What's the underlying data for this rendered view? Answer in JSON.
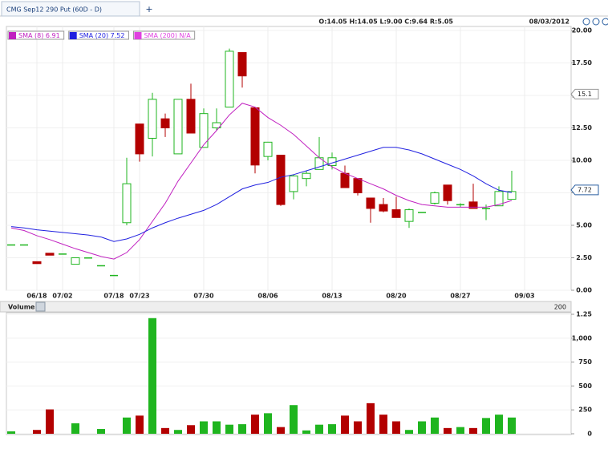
{
  "tab": {
    "title": "CMG Sep12 290 Put (60D - D)",
    "add": "+"
  },
  "chart_data": [
    {
      "type": "candlestick",
      "info": "O:14.05 H:14.05 L:9.00 C:9.64 R:5.05",
      "date": "08/03/2012",
      "categories": [
        null,
        null,
        "06/18",
        null,
        "07/02",
        null,
        null,
        null,
        "07/18",
        null,
        "07/23",
        null,
        null,
        null,
        null,
        "07/30",
        null,
        null,
        null,
        null,
        "08/06",
        null,
        null,
        null,
        null,
        "08/13",
        null,
        null,
        null,
        null,
        "08/20",
        null,
        null,
        null,
        null,
        "08/27",
        null,
        null,
        null,
        null,
        "09/03"
      ],
      "open": [
        3.5,
        3.5,
        2.2,
        2.85,
        2.8,
        2.0,
        2.5,
        1.9,
        1.15,
        5.2,
        12.8,
        11.7,
        13.2,
        10.5,
        14.7,
        11.0,
        12.5,
        14.1,
        18.3,
        14.05,
        10.3,
        10.4,
        7.6,
        8.6,
        9.3,
        9.6,
        9.0,
        8.6,
        7.1,
        6.6,
        6.2,
        5.3,
        6.0,
        6.7,
        8.1,
        6.6,
        6.8,
        6.3,
        6.5,
        7.0,
        null
      ],
      "high": [
        3.5,
        3.5,
        2.2,
        2.85,
        2.8,
        2.5,
        2.5,
        1.9,
        1.15,
        10.2,
        12.8,
        15.2,
        13.6,
        14.7,
        15.9,
        14.0,
        14.0,
        18.6,
        18.3,
        14.05,
        11.4,
        10.4,
        8.9,
        9.2,
        11.8,
        10.6,
        9.6,
        8.6,
        7.1,
        7.1,
        7.2,
        6.3,
        6.0,
        7.6,
        8.1,
        6.7,
        8.2,
        6.6,
        8.0,
        9.2,
        null
      ],
      "low": [
        3.5,
        3.5,
        2.05,
        2.7,
        2.8,
        2.0,
        2.5,
        1.9,
        1.15,
        5.0,
        9.9,
        10.3,
        11.8,
        10.5,
        12.1,
        11.0,
        12.3,
        14.1,
        15.6,
        9.0,
        10.0,
        6.5,
        7.0,
        8.0,
        9.3,
        9.3,
        7.9,
        7.3,
        5.2,
        6.0,
        5.6,
        4.8,
        6.0,
        6.6,
        6.6,
        6.4,
        6.3,
        5.4,
        6.5,
        7.0,
        null
      ],
      "close": [
        3.5,
        3.5,
        2.05,
        2.7,
        2.8,
        2.5,
        2.5,
        1.9,
        1.15,
        8.2,
        10.5,
        14.7,
        12.5,
        14.7,
        12.1,
        13.6,
        12.9,
        18.4,
        16.5,
        9.64,
        11.4,
        6.6,
        8.8,
        9.0,
        10.2,
        10.2,
        7.9,
        7.5,
        6.3,
        6.1,
        5.6,
        6.2,
        6.0,
        7.5,
        6.9,
        6.6,
        6.3,
        6.3,
        7.6,
        7.6,
        null
      ],
      "up_color": "#1fb51f",
      "down_color": "#b30000",
      "series": [
        {
          "name": "SMA (8) 6.91",
          "color": "#c020c0",
          "values": [
            4.8,
            4.6,
            4.2,
            3.9,
            3.55,
            3.2,
            2.9,
            2.6,
            2.4,
            2.9,
            3.9,
            5.3,
            6.7,
            8.4,
            9.8,
            11.2,
            12.3,
            13.5,
            14.4,
            14.1,
            13.3,
            12.7,
            12.0,
            11.1,
            10.2,
            9.5,
            9.0,
            8.6,
            8.2,
            7.8,
            7.3,
            6.9,
            6.6,
            6.5,
            6.4,
            6.4,
            6.4,
            6.4,
            6.6,
            6.91,
            null
          ]
        },
        {
          "name": "SMA (20) 7.52",
          "color": "#2020e0",
          "values": [
            4.9,
            4.8,
            4.65,
            4.55,
            4.45,
            4.35,
            4.25,
            4.1,
            3.75,
            3.95,
            4.3,
            4.8,
            5.2,
            5.55,
            5.85,
            6.15,
            6.6,
            7.2,
            7.8,
            8.1,
            8.3,
            8.7,
            8.9,
            9.2,
            9.5,
            9.8,
            10.1,
            10.4,
            10.7,
            11.0,
            11.0,
            10.8,
            10.5,
            10.1,
            9.7,
            9.3,
            8.8,
            8.2,
            7.7,
            7.52,
            null
          ]
        },
        {
          "name": "SMA (200) N/A",
          "color": "#e040e0",
          "values": [
            null,
            null,
            null,
            null,
            null,
            null,
            null,
            null,
            null,
            null,
            null,
            null,
            null,
            null,
            null,
            null,
            null,
            null,
            null,
            null,
            null,
            null,
            null,
            null,
            null,
            null,
            null,
            null,
            null,
            null,
            null,
            null,
            null,
            null,
            null,
            null,
            null,
            null,
            null,
            null,
            null
          ]
        }
      ],
      "price_flags": [
        15.1,
        7.72
      ],
      "ylim": [
        0,
        20
      ],
      "yticks": [
        {
          "value": 0,
          "label": "0.00"
        },
        {
          "value": 2.5,
          "label": "2.50"
        },
        {
          "value": 5,
          "label": "5.00"
        },
        {
          "value": 7.5,
          "label": "7.50"
        },
        {
          "value": 10,
          "label": "10.00"
        },
        {
          "value": 12.5,
          "label": "12.50"
        },
        {
          "value": 15,
          "label": "15.00"
        },
        {
          "value": 17.5,
          "label": "17.50"
        },
        {
          "value": 20,
          "label": "20.00"
        }
      ],
      "grid": true
    },
    {
      "type": "bar",
      "title": "Volume",
      "period": 200,
      "values": [
        25,
        null,
        40,
        255,
        null,
        110,
        null,
        50,
        null,
        170,
        190,
        1210,
        60,
        40,
        90,
        130,
        130,
        95,
        100,
        200,
        215,
        70,
        300,
        35,
        95,
        100,
        190,
        130,
        320,
        200,
        130,
        40,
        130,
        170,
        60,
        70,
        60,
        165,
        200,
        170,
        null
      ],
      "colors": [
        "#1fb51f",
        null,
        "#b30000",
        "#b30000",
        null,
        "#1fb51f",
        null,
        "#1fb51f",
        null,
        "#1fb51f",
        "#b30000",
        "#1fb51f",
        "#b30000",
        "#1fb51f",
        "#b30000",
        "#1fb51f",
        "#1fb51f",
        "#1fb51f",
        "#1fb51f",
        "#b30000",
        "#1fb51f",
        "#b30000",
        "#1fb51f",
        "#1fb51f",
        "#1fb51f",
        "#1fb51f",
        "#b30000",
        "#b30000",
        "#b30000",
        "#b30000",
        "#b30000",
        "#1fb51f",
        "#1fb51f",
        "#1fb51f",
        "#b30000",
        "#1fb51f",
        "#b30000",
        "#1fb51f",
        "#1fb51f",
        "#1fb51f",
        null
      ],
      "ylim": [
        0,
        1250
      ],
      "yticks": [
        0,
        250,
        500,
        750,
        {
          "value": 1000,
          "label": "1,000"
        },
        {
          "value": 1250,
          "label": "1.25"
        }
      ],
      "grid": true
    }
  ]
}
